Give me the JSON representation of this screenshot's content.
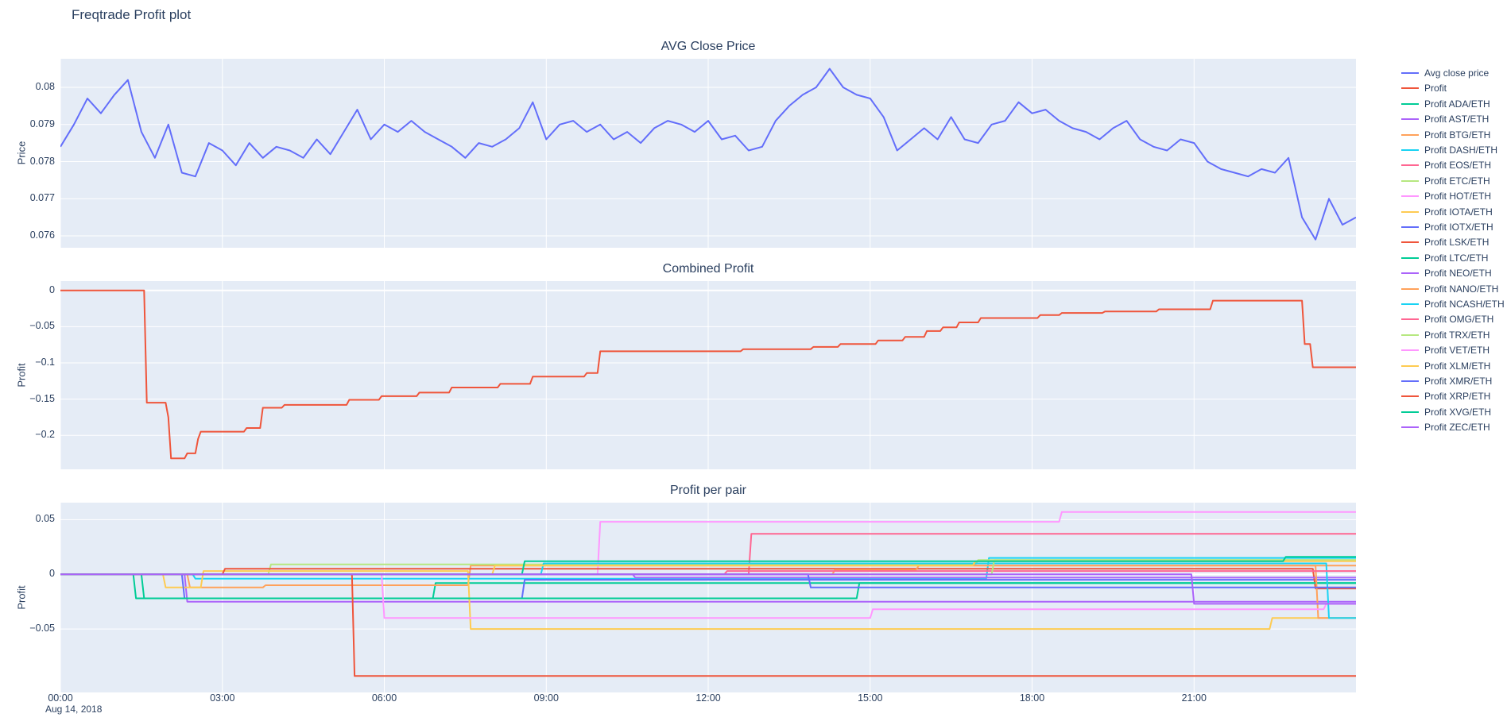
{
  "page_title": "Freqtrade Profit plot",
  "date_label": "Aug 14, 2018",
  "colors": {
    "text": "#2a3f5f",
    "plot_bg": "#E5ECF6",
    "grid": "#FFFFFF",
    "accent_blue": "#636EFA",
    "accent_red": "#EF553B"
  },
  "xaxis": {
    "range": [
      0,
      24
    ],
    "tick_values": [
      0,
      3,
      6,
      9,
      12,
      15,
      18,
      21
    ],
    "tick_labels": [
      "00:00",
      "03:00",
      "06:00",
      "09:00",
      "12:00",
      "15:00",
      "18:00",
      "21:00"
    ]
  },
  "chart_data": [
    {
      "id": "avg-close-price",
      "type": "line",
      "title": "AVG Close Price",
      "ylabel": "Price",
      "ylim": [
        0.07568,
        0.08077
      ],
      "yticks": {
        "values": [
          0.076,
          0.077,
          0.078,
          0.079,
          0.08
        ],
        "labels": [
          "0.076",
          "0.077",
          "0.078",
          "0.079",
          "0.08"
        ]
      },
      "series": [
        {
          "name": "Avg close price",
          "color": "#636EFA",
          "x0": 0,
          "dx": 0.25,
          "y": [
            0.0784,
            0.079,
            0.0797,
            0.0793,
            0.0798,
            0.0802,
            0.0788,
            0.0781,
            0.079,
            0.0777,
            0.0776,
            0.0785,
            0.0783,
            0.0779,
            0.0785,
            0.0781,
            0.0784,
            0.0783,
            0.0781,
            0.0786,
            0.0782,
            0.0788,
            0.0794,
            0.0786,
            0.079,
            0.0788,
            0.0791,
            0.0788,
            0.0786,
            0.0784,
            0.0781,
            0.0785,
            0.0784,
            0.0786,
            0.0789,
            0.0796,
            0.0786,
            0.079,
            0.0791,
            0.0788,
            0.079,
            0.0786,
            0.0788,
            0.0785,
            0.0789,
            0.0791,
            0.079,
            0.0788,
            0.0791,
            0.0786,
            0.0787,
            0.0783,
            0.0784,
            0.0791,
            0.0795,
            0.0798,
            0.08,
            0.0805,
            0.08,
            0.0798,
            0.0797,
            0.0792,
            0.0783,
            0.0786,
            0.0789,
            0.0786,
            0.0792,
            0.0786,
            0.0785,
            0.079,
            0.0791,
            0.0796,
            0.0793,
            0.0794,
            0.0791,
            0.0789,
            0.0788,
            0.0786,
            0.0789,
            0.0791,
            0.0786,
            0.0784,
            0.0783,
            0.0786,
            0.0785,
            0.078,
            0.0778,
            0.0777,
            0.0776,
            0.0778,
            0.0777,
            0.0781,
            0.0765,
            0.0759,
            0.077,
            0.0763,
            0.0765
          ]
        }
      ]
    },
    {
      "id": "combined-profit",
      "type": "line",
      "title": "Combined Profit",
      "ylabel": "Profit",
      "ylim": [
        -0.247,
        0.013
      ],
      "yticks": {
        "values": [
          0,
          -0.05,
          -0.1,
          -0.15,
          -0.2
        ],
        "labels": [
          "0",
          "−0.05",
          "−0.1",
          "−0.15",
          "−0.2"
        ]
      },
      "series": [
        {
          "name": "Profit",
          "color": "#EF553B",
          "points": [
            [
              0,
              0
            ],
            [
              1.55,
              0
            ],
            [
              1.6,
              -0.155
            ],
            [
              1.95,
              -0.155
            ],
            [
              2.0,
              -0.175
            ],
            [
              2.05,
              -0.232
            ],
            [
              2.3,
              -0.232
            ],
            [
              2.35,
              -0.225
            ],
            [
              2.5,
              -0.225
            ],
            [
              2.55,
              -0.205
            ],
            [
              2.6,
              -0.195
            ],
            [
              3.4,
              -0.195
            ],
            [
              3.45,
              -0.19
            ],
            [
              3.7,
              -0.19
            ],
            [
              3.75,
              -0.162
            ],
            [
              4.1,
              -0.162
            ],
            [
              4.15,
              -0.158
            ],
            [
              5.3,
              -0.158
            ],
            [
              5.35,
              -0.151
            ],
            [
              5.9,
              -0.151
            ],
            [
              5.95,
              -0.146
            ],
            [
              6.6,
              -0.146
            ],
            [
              6.65,
              -0.141
            ],
            [
              7.2,
              -0.141
            ],
            [
              7.25,
              -0.134
            ],
            [
              8.1,
              -0.134
            ],
            [
              8.15,
              -0.129
            ],
            [
              8.7,
              -0.129
            ],
            [
              8.75,
              -0.119
            ],
            [
              9.7,
              -0.119
            ],
            [
              9.75,
              -0.114
            ],
            [
              9.95,
              -0.114
            ],
            [
              10.0,
              -0.084
            ],
            [
              12.6,
              -0.084
            ],
            [
              12.65,
              -0.081
            ],
            [
              13.9,
              -0.081
            ],
            [
              13.95,
              -0.078
            ],
            [
              14.4,
              -0.078
            ],
            [
              14.45,
              -0.074
            ],
            [
              15.1,
              -0.074
            ],
            [
              15.15,
              -0.069
            ],
            [
              15.6,
              -0.069
            ],
            [
              15.65,
              -0.064
            ],
            [
              16.0,
              -0.064
            ],
            [
              16.05,
              -0.056
            ],
            [
              16.3,
              -0.056
            ],
            [
              16.35,
              -0.051
            ],
            [
              16.6,
              -0.051
            ],
            [
              16.65,
              -0.044
            ],
            [
              17.0,
              -0.044
            ],
            [
              17.05,
              -0.038
            ],
            [
              18.1,
              -0.038
            ],
            [
              18.15,
              -0.034
            ],
            [
              18.5,
              -0.034
            ],
            [
              18.55,
              -0.031
            ],
            [
              19.3,
              -0.031
            ],
            [
              19.35,
              -0.029
            ],
            [
              20.3,
              -0.029
            ],
            [
              20.35,
              -0.026
            ],
            [
              21.3,
              -0.026
            ],
            [
              21.35,
              -0.014
            ],
            [
              23.0,
              -0.014
            ],
            [
              23.05,
              -0.074
            ],
            [
              23.15,
              -0.074
            ],
            [
              23.2,
              -0.106
            ],
            [
              24,
              -0.106
            ]
          ]
        }
      ]
    },
    {
      "id": "profit-per-pair",
      "type": "line",
      "title": "Profit per pair",
      "ylabel": "Profit",
      "ylim": [
        -0.108,
        0.0655
      ],
      "yticks": {
        "values": [
          0.05,
          0,
          -0.05
        ],
        "labels": [
          "0.05",
          "0",
          "−0.05"
        ]
      },
      "series": [
        {
          "name": "Profit ADA/ETH",
          "color": "#00CC96",
          "points": [
            [
              0,
              0
            ],
            [
              1.35,
              0
            ],
            [
              1.4,
              -0.022
            ],
            [
              6.9,
              -0.022
            ],
            [
              6.95,
              -0.008
            ],
            [
              24,
              -0.008
            ]
          ]
        },
        {
          "name": "Profit AST/ETH",
          "color": "#AB63FA",
          "points": [
            [
              0,
              0
            ],
            [
              2.3,
              0
            ],
            [
              2.35,
              -0.025
            ],
            [
              24,
              -0.025
            ]
          ]
        },
        {
          "name": "Profit BTG/ETH",
          "color": "#FFA15A",
          "points": [
            [
              0,
              0
            ],
            [
              2.35,
              0
            ],
            [
              2.4,
              -0.012
            ],
            [
              3.75,
              -0.012
            ],
            [
              3.8,
              -0.01
            ],
            [
              7.55,
              -0.01
            ],
            [
              7.6,
              0.008
            ],
            [
              24,
              0.008
            ]
          ]
        },
        {
          "name": "Profit DASH/ETH",
          "color": "#19D3F3",
          "points": [
            [
              0,
              0
            ],
            [
              2.45,
              0
            ],
            [
              2.5,
              -0.004
            ],
            [
              17.15,
              -0.004
            ],
            [
              17.2,
              0.015
            ],
            [
              24,
              0.015
            ]
          ]
        },
        {
          "name": "Profit EOS/ETH",
          "color": "#FF6692",
          "points": [
            [
              0,
              0
            ],
            [
              12.75,
              0
            ],
            [
              12.8,
              0.037
            ],
            [
              24,
              0.037
            ]
          ]
        },
        {
          "name": "Profit ETC/ETH",
          "color": "#B6E880",
          "points": [
            [
              0,
              0
            ],
            [
              3.85,
              0
            ],
            [
              3.9,
              0.009
            ],
            [
              16.95,
              0.009
            ],
            [
              17.0,
              0.013
            ],
            [
              24,
              0.013
            ]
          ]
        },
        {
          "name": "Profit HOT/ETH",
          "color": "#FF97FF",
          "points": [
            [
              0,
              0
            ],
            [
              9.95,
              0
            ],
            [
              10.0,
              0.048
            ],
            [
              18.5,
              0.048
            ],
            [
              18.55,
              0.057
            ],
            [
              24,
              0.057
            ]
          ]
        },
        {
          "name": "Profit IOTA/ETH",
          "color": "#FECB52",
          "points": [
            [
              0,
              0
            ],
            [
              1.9,
              0
            ],
            [
              1.95,
              -0.012
            ],
            [
              2.6,
              -0.012
            ],
            [
              2.65,
              0.003
            ],
            [
              7.55,
              0.003
            ],
            [
              7.6,
              -0.05
            ],
            [
              22.4,
              -0.05
            ],
            [
              22.45,
              -0.04
            ],
            [
              24,
              -0.04
            ]
          ]
        },
        {
          "name": "Profit IOTX/ETH",
          "color": "#636EFA",
          "points": [
            [
              0,
              0
            ],
            [
              2.25,
              0
            ],
            [
              2.3,
              -0.022
            ],
            [
              8.55,
              -0.022
            ],
            [
              8.6,
              -0.005
            ],
            [
              24,
              -0.005
            ]
          ]
        },
        {
          "name": "Profit LSK/ETH",
          "color": "#EF553B",
          "points": [
            [
              0,
              0
            ],
            [
              3.0,
              0
            ],
            [
              3.05,
              0.005
            ],
            [
              23.2,
              0.005
            ],
            [
              23.25,
              -0.013
            ],
            [
              24,
              -0.013
            ]
          ]
        },
        {
          "name": "Profit LTC/ETH",
          "color": "#00CC96",
          "points": [
            [
              0,
              0
            ],
            [
              1.5,
              0
            ],
            [
              1.55,
              -0.022
            ],
            [
              14.75,
              -0.022
            ],
            [
              14.8,
              -0.008
            ],
            [
              24,
              -0.008
            ]
          ]
        },
        {
          "name": "Profit NEO/ETH",
          "color": "#AB63FA",
          "points": [
            [
              0,
              0
            ],
            [
              10.6,
              0
            ],
            [
              10.65,
              -0.003
            ],
            [
              24,
              -0.003
            ]
          ]
        },
        {
          "name": "Profit NANO/ETH",
          "color": "#FFA15A",
          "points": [
            [
              0,
              0
            ],
            [
              14.3,
              0
            ],
            [
              14.35,
              0.004
            ],
            [
              15.85,
              0.004
            ],
            [
              15.9,
              0.008
            ],
            [
              23.25,
              0.008
            ],
            [
              23.3,
              -0.04
            ],
            [
              24,
              -0.04
            ]
          ]
        },
        {
          "name": "Profit NCASH/ETH",
          "color": "#19D3F3",
          "points": [
            [
              0,
              0
            ],
            [
              8.9,
              0
            ],
            [
              8.95,
              0.01
            ],
            [
              23.45,
              0.01
            ],
            [
              23.5,
              -0.04
            ],
            [
              24,
              -0.04
            ]
          ]
        },
        {
          "name": "Profit OMG/ETH",
          "color": "#FF6692",
          "points": [
            [
              0,
              0
            ],
            [
              12.3,
              0
            ],
            [
              12.35,
              0.003
            ],
            [
              24,
              0.003
            ]
          ]
        },
        {
          "name": "Profit TRX/ETH",
          "color": "#B6E880",
          "points": [
            [
              0,
              0
            ],
            [
              17.25,
              0
            ],
            [
              17.3,
              0.013
            ],
            [
              24,
              0.013
            ]
          ]
        },
        {
          "name": "Profit VET/ETH",
          "color": "#FF97FF",
          "points": [
            [
              0,
              0
            ],
            [
              5.95,
              0
            ],
            [
              6.0,
              -0.04
            ],
            [
              15.0,
              -0.04
            ],
            [
              15.05,
              -0.032
            ],
            [
              23.4,
              -0.032
            ],
            [
              23.45,
              -0.027
            ],
            [
              24,
              -0.027
            ]
          ]
        },
        {
          "name": "Profit XLM/ETH",
          "color": "#FECB52",
          "points": [
            [
              0,
              0
            ],
            [
              8.0,
              0
            ],
            [
              8.05,
              0.008
            ],
            [
              16.9,
              0.008
            ],
            [
              16.95,
              0.012
            ],
            [
              24,
              0.012
            ]
          ]
        },
        {
          "name": "Profit XMR/ETH",
          "color": "#636EFA",
          "points": [
            [
              0,
              0
            ],
            [
              13.85,
              0
            ],
            [
              13.9,
              -0.012
            ],
            [
              24,
              -0.012
            ]
          ]
        },
        {
          "name": "Profit XRP/ETH",
          "color": "#EF553B",
          "points": [
            [
              0,
              0
            ],
            [
              5.4,
              0
            ],
            [
              5.45,
              -0.093
            ],
            [
              24,
              -0.093
            ]
          ]
        },
        {
          "name": "Profit XVG/ETH",
          "color": "#00CC96",
          "points": [
            [
              0,
              0
            ],
            [
              8.55,
              0
            ],
            [
              8.6,
              0.012
            ],
            [
              22.65,
              0.012
            ],
            [
              22.7,
              0.016
            ],
            [
              24,
              0.016
            ]
          ]
        },
        {
          "name": "Profit ZEC/ETH",
          "color": "#AB63FA",
          "points": [
            [
              0,
              0
            ],
            [
              20.95,
              0
            ],
            [
              21.0,
              -0.027
            ],
            [
              24,
              -0.027
            ]
          ]
        }
      ]
    }
  ]
}
